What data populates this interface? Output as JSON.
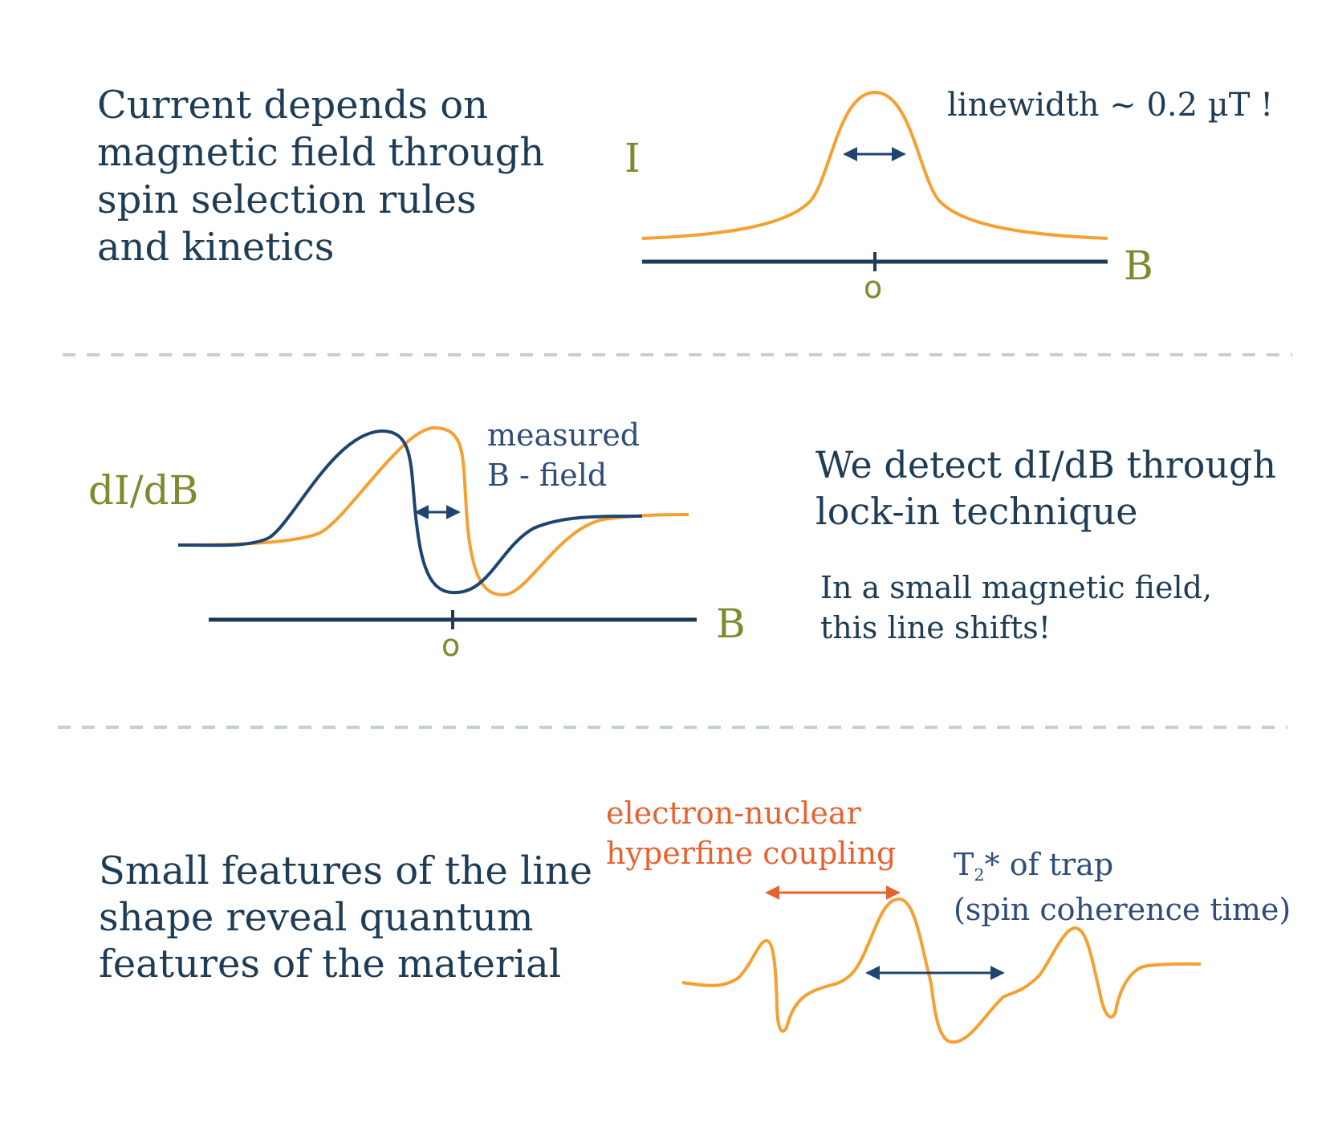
{
  "panel1": {
    "text_lines": [
      "Current depends on",
      "magnetic field through",
      "spin selection rules",
      "and kinetics"
    ],
    "y_axis_label": "I",
    "x_axis_label": "B",
    "tick_label": "o",
    "linewidth_note": "linewidth ~ 0.2 µT !"
  },
  "panel2": {
    "y_axis_label": "dI/dB",
    "x_axis_label": "B",
    "tick_label": "o",
    "measured_lines": [
      "measured",
      "B - field"
    ],
    "heading_lines": [
      "We detect dI/dB through",
      "lock-in technique"
    ],
    "note_lines": [
      "In a small magnetic field,",
      "this line shifts!"
    ]
  },
  "panel3": {
    "text_lines": [
      "Small features of the line",
      "shape reveal quantum",
      "features of the material"
    ],
    "hyperfine_lines": [
      "electron-nuclear",
      "hyperfine coupling"
    ],
    "t2_main": "T",
    "t2_sub": "2",
    "t2_rest": "* of trap",
    "t2_line2": "(spin coherence time)"
  },
  "colors": {
    "text": "#1e3c55",
    "axis_label": "#7d8a2e",
    "curve_orange": "#f5a030",
    "curve_blue": "#1e4470",
    "annotation_red": "#e8622f",
    "separator": "#c5cfd3"
  }
}
